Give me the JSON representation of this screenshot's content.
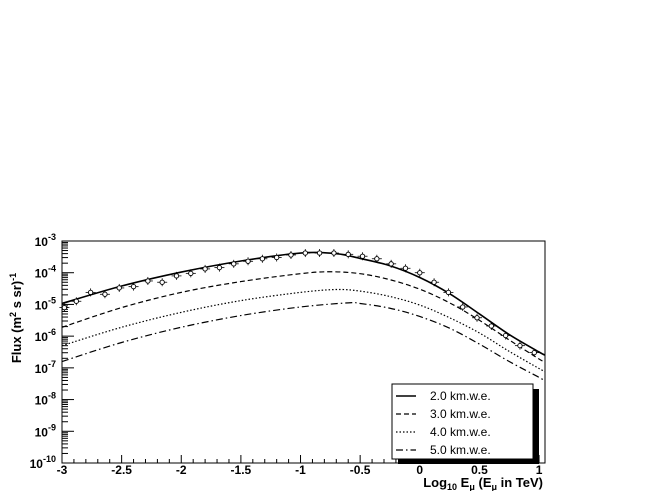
{
  "chart_data": {
    "type": "line",
    "xlabel": {
      "main": "Log",
      "sub1": "10",
      "mid": " E",
      "sub2": "μ",
      "tail1": " (E",
      "sub3": "μ",
      "tail2": " in TeV)"
    },
    "ylabel": {
      "main": "Flux (m",
      "sup1": "2",
      "mid": " s sr)",
      "sup2": "-1"
    },
    "xlim": [
      -3,
      1.05
    ],
    "ylim_log10": [
      -10,
      -3
    ],
    "xticks": [
      -3,
      -2.5,
      -2,
      -1.5,
      -1,
      -0.5,
      0,
      0.5,
      1
    ],
    "xtick_labels": [
      "-3",
      "-2.5",
      "-2",
      "-1.5",
      "-1",
      "-0.5",
      "0",
      "0.5",
      "1"
    ],
    "yticks_log10": [
      -10,
      -9,
      -8,
      -7,
      -6,
      -5,
      -4,
      -3
    ],
    "ytick_labels": [
      {
        "base": "10",
        "exp": "-10"
      },
      {
        "base": "10",
        "exp": "-9"
      },
      {
        "base": "10",
        "exp": "-8"
      },
      {
        "base": "10",
        "exp": "-7"
      },
      {
        "base": "10",
        "exp": "-6"
      },
      {
        "base": "10",
        "exp": "-5"
      },
      {
        "base": "10",
        "exp": "-4"
      },
      {
        "base": "10",
        "exp": "-3"
      }
    ],
    "legend_position": "bottom-right",
    "series": [
      {
        "name": "2.0 km.w.e.",
        "style": "solid",
        "x": [
          -3,
          -2.5,
          -2,
          -1.5,
          -1,
          -0.7,
          -0.5,
          -0.25,
          0,
          0.25,
          0.5,
          0.75,
          1,
          1.05
        ],
        "log10_flux": [
          -4.97,
          -4.42,
          -3.98,
          -3.63,
          -3.38,
          -3.4,
          -3.55,
          -3.78,
          -4.15,
          -4.66,
          -5.3,
          -5.95,
          -6.5,
          -6.6
        ]
      },
      {
        "name": "3.0 km.w.e.",
        "style": "dashed",
        "x": [
          -3,
          -2.5,
          -2,
          -1.5,
          -1,
          -0.75,
          -0.5,
          -0.25,
          0,
          0.25,
          0.5,
          0.75,
          1,
          1.05
        ],
        "log10_flux": [
          -5.72,
          -5.1,
          -4.62,
          -4.28,
          -4.03,
          -3.97,
          -4.03,
          -4.22,
          -4.52,
          -4.95,
          -5.5,
          -6.12,
          -6.72,
          -6.82
        ]
      },
      {
        "name": "4.0 km.w.e.",
        "style": "dotted",
        "x": [
          -3,
          -2.5,
          -2,
          -1.5,
          -1,
          -0.7,
          -0.5,
          -0.25,
          0,
          0.25,
          0.5,
          0.75,
          1,
          1.05
        ],
        "log10_flux": [
          -6.3,
          -5.72,
          -5.25,
          -4.88,
          -4.62,
          -4.53,
          -4.58,
          -4.75,
          -5.02,
          -5.42,
          -5.9,
          -6.48,
          -7.02,
          -7.12
        ]
      },
      {
        "name": "5.0 km.w.e.",
        "style": "dashdot",
        "x": [
          -3,
          -2.5,
          -2,
          -1.5,
          -1,
          -0.6,
          -0.5,
          -0.25,
          0,
          0.25,
          0.5,
          0.75,
          1,
          1.05
        ],
        "log10_flux": [
          -6.8,
          -6.2,
          -5.72,
          -5.35,
          -5.08,
          -4.95,
          -4.97,
          -5.12,
          -5.38,
          -5.75,
          -6.25,
          -6.8,
          -7.3,
          -7.42
        ]
      }
    ],
    "markers": {
      "x": [
        -2.98,
        -2.88,
        -2.76,
        -2.64,
        -2.52,
        -2.4,
        -2.28,
        -2.16,
        -2.04,
        -1.92,
        -1.8,
        -1.68,
        -1.56,
        -1.44,
        -1.32,
        -1.2,
        -1.08,
        -0.96,
        -0.84,
        -0.72,
        -0.6,
        -0.48,
        -0.36,
        -0.24,
        -0.12,
        0.0,
        0.12,
        0.24,
        0.36,
        0.48,
        0.6,
        0.72,
        0.84,
        0.96
      ],
      "log10_flux": [
        -5.1,
        -4.9,
        -4.62,
        -4.68,
        -4.48,
        -4.44,
        -4.26,
        -4.3,
        -4.1,
        -4.02,
        -3.88,
        -3.84,
        -3.72,
        -3.64,
        -3.56,
        -3.52,
        -3.44,
        -3.38,
        -3.38,
        -3.38,
        -3.42,
        -3.48,
        -3.56,
        -3.72,
        -3.86,
        -4.0,
        -4.3,
        -4.62,
        -5.08,
        -5.42,
        -5.68,
        -5.98,
        -6.3,
        -6.52
      ]
    }
  }
}
